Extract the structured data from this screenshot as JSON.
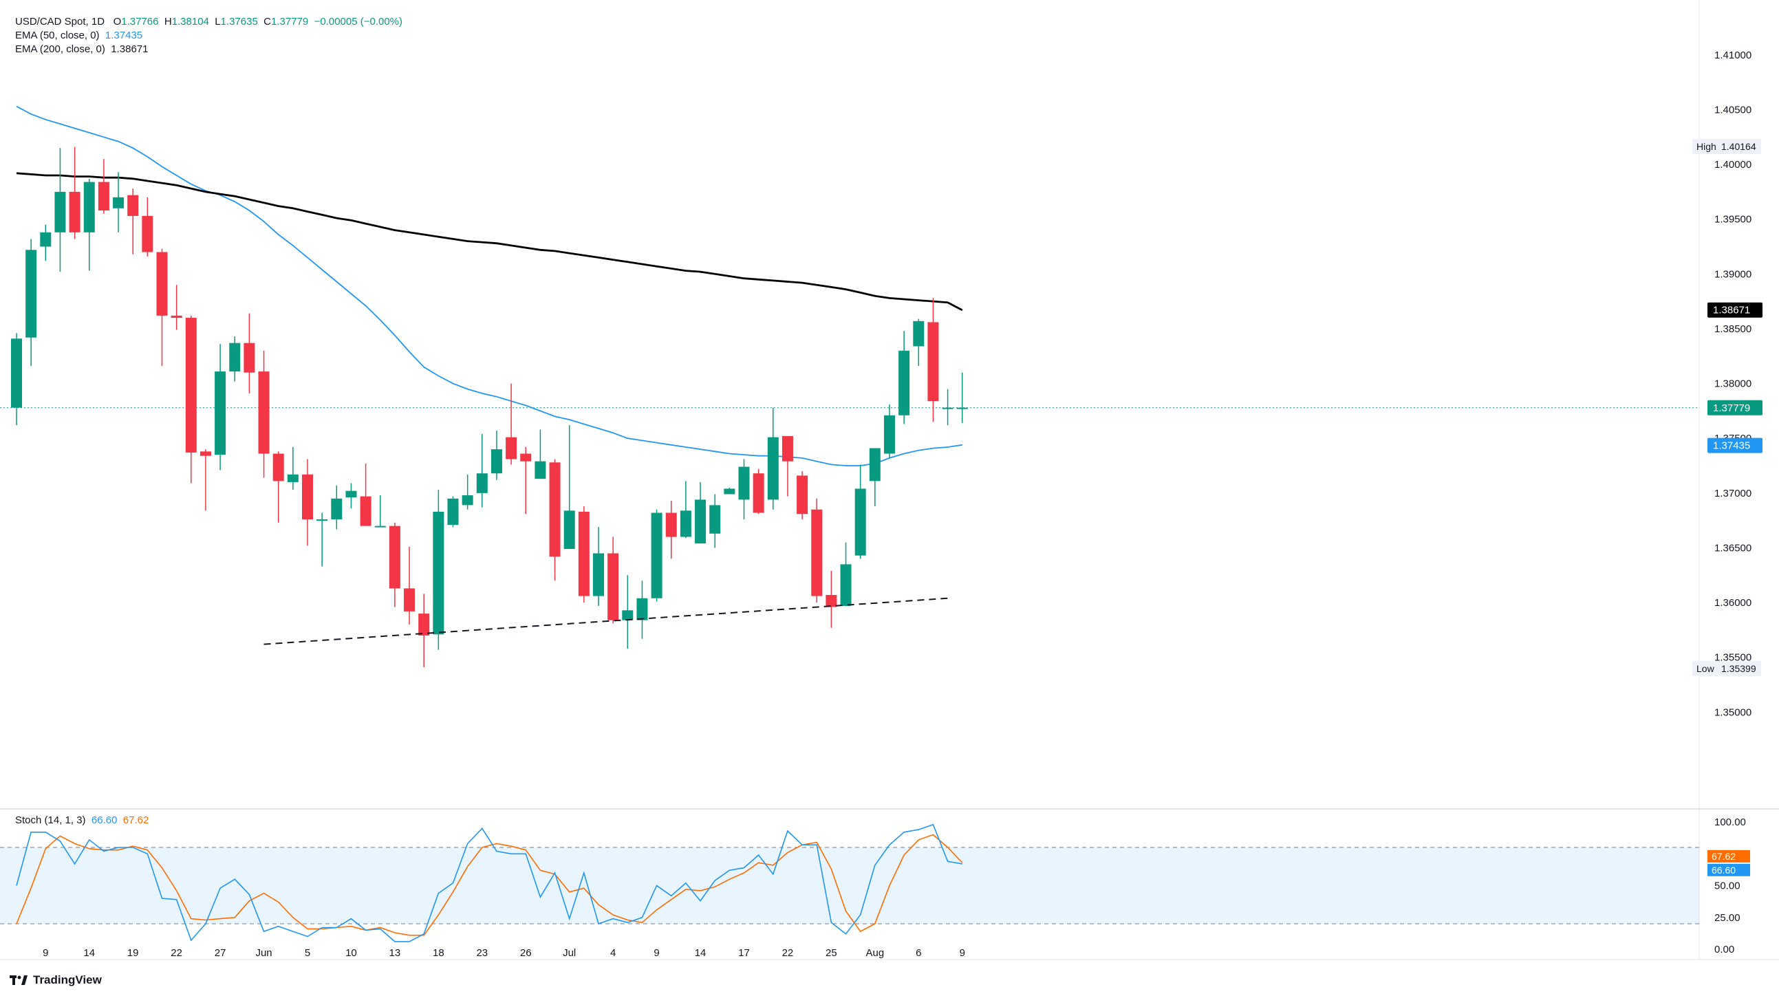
{
  "legend": {
    "symbol": "USD/CAD Spot, 1D",
    "o_label": "O",
    "open": "1.37766",
    "h_label": "H",
    "high": "1.38104",
    "l_label": "L",
    "low": "1.37635",
    "c_label": "C",
    "close": "1.37779",
    "change": "−0.00005 (−0.00%)",
    "ema50_label": "EMA (50, close, 0)",
    "ema50_value": "1.37435",
    "ema200_label": "EMA (200, close, 0)",
    "ema200_value": "1.38671"
  },
  "stoch_legend": {
    "label": "Stoch (14, 1, 3)",
    "k": "66.60",
    "d": "67.62"
  },
  "brand": "TradingView",
  "colors": {
    "up": "#089981",
    "down": "#f23645",
    "ema50": "#2196f3",
    "ema200": "#000000",
    "stoch_k": "#2196f3",
    "stoch_d": "#ff6d00"
  },
  "chart_data": [
    {
      "type": "candlestick",
      "ylim": [
        1.345,
        1.4125
      ],
      "y_ticks": [
        "1.41000",
        "1.40500",
        "1.40000",
        "1.39500",
        "1.39000",
        "1.38500",
        "1.38000",
        "1.37500",
        "1.37000",
        "1.36500",
        "1.36000",
        "1.35500",
        "1.35000"
      ],
      "x_ticks": [
        "9",
        "14",
        "19",
        "22",
        "27",
        "Jun",
        "5",
        "10",
        "13",
        "18",
        "23",
        "26",
        "Jul",
        "4",
        "9",
        "14",
        "17",
        "22",
        "25",
        "Aug",
        "6",
        "9"
      ],
      "candles": [
        {
          "o": 1.3778,
          "h": 1.3846,
          "l": 1.3762,
          "c": 1.3841
        },
        {
          "o": 1.3842,
          "h": 1.3932,
          "l": 1.3816,
          "c": 1.3922
        },
        {
          "o": 1.3925,
          "h": 1.3945,
          "l": 1.3912,
          "c": 1.3938
        },
        {
          "o": 1.3938,
          "h": 1.4015,
          "l": 1.3902,
          "c": 1.3975
        },
        {
          "o": 1.3975,
          "h": 1.4016,
          "l": 1.3932,
          "c": 1.3938
        },
        {
          "o": 1.3938,
          "h": 1.3987,
          "l": 1.3903,
          "c": 1.3984
        },
        {
          "o": 1.3984,
          "h": 1.4005,
          "l": 1.3955,
          "c": 1.3958
        },
        {
          "o": 1.396,
          "h": 1.3993,
          "l": 1.3938,
          "c": 1.397
        },
        {
          "o": 1.3972,
          "h": 1.3978,
          "l": 1.3918,
          "c": 1.3953
        },
        {
          "o": 1.3953,
          "h": 1.397,
          "l": 1.3916,
          "c": 1.392
        },
        {
          "o": 1.392,
          "h": 1.3923,
          "l": 1.3816,
          "c": 1.3862
        },
        {
          "o": 1.3862,
          "h": 1.389,
          "l": 1.3849,
          "c": 1.386
        },
        {
          "o": 1.386,
          "h": 1.3862,
          "l": 1.3709,
          "c": 1.3737
        },
        {
          "o": 1.3738,
          "h": 1.374,
          "l": 1.3684,
          "c": 1.3734
        },
        {
          "o": 1.3735,
          "h": 1.3836,
          "l": 1.3721,
          "c": 1.3811
        },
        {
          "o": 1.3811,
          "h": 1.3843,
          "l": 1.3802,
          "c": 1.3837
        },
        {
          "o": 1.3837,
          "h": 1.3864,
          "l": 1.3791,
          "c": 1.381
        },
        {
          "o": 1.3811,
          "h": 1.383,
          "l": 1.3714,
          "c": 1.3736
        },
        {
          "o": 1.3736,
          "h": 1.3738,
          "l": 1.3673,
          "c": 1.3711
        },
        {
          "o": 1.371,
          "h": 1.3742,
          "l": 1.3703,
          "c": 1.3717
        },
        {
          "o": 1.3717,
          "h": 1.3731,
          "l": 1.3652,
          "c": 1.3676
        },
        {
          "o": 1.3676,
          "h": 1.3682,
          "l": 1.3633,
          "c": 1.3676
        },
        {
          "o": 1.3676,
          "h": 1.3707,
          "l": 1.3667,
          "c": 1.3695
        },
        {
          "o": 1.3696,
          "h": 1.3709,
          "l": 1.3686,
          "c": 1.3702
        },
        {
          "o": 1.3697,
          "h": 1.3727,
          "l": 1.3672,
          "c": 1.367
        },
        {
          "o": 1.3669,
          "h": 1.3698,
          "l": 1.3669,
          "c": 1.367
        },
        {
          "o": 1.367,
          "h": 1.3673,
          "l": 1.3596,
          "c": 1.3613
        },
        {
          "o": 1.3613,
          "h": 1.3651,
          "l": 1.358,
          "c": 1.3592
        },
        {
          "o": 1.359,
          "h": 1.3608,
          "l": 1.3541,
          "c": 1.357
        },
        {
          "o": 1.3571,
          "h": 1.3703,
          "l": 1.3557,
          "c": 1.3683
        },
        {
          "o": 1.3671,
          "h": 1.3697,
          "l": 1.3669,
          "c": 1.3695
        },
        {
          "o": 1.3689,
          "h": 1.3717,
          "l": 1.3685,
          "c": 1.3698
        },
        {
          "o": 1.37,
          "h": 1.3754,
          "l": 1.3687,
          "c": 1.3718
        },
        {
          "o": 1.3718,
          "h": 1.3757,
          "l": 1.3712,
          "c": 1.374
        },
        {
          "o": 1.3751,
          "h": 1.38,
          "l": 1.3726,
          "c": 1.3731
        },
        {
          "o": 1.3736,
          "h": 1.3742,
          "l": 1.3681,
          "c": 1.3729
        },
        {
          "o": 1.3713,
          "h": 1.3758,
          "l": 1.3713,
          "c": 1.3729
        },
        {
          "o": 1.3728,
          "h": 1.3731,
          "l": 1.362,
          "c": 1.3642
        },
        {
          "o": 1.3649,
          "h": 1.3762,
          "l": 1.3649,
          "c": 1.3684
        },
        {
          "o": 1.3683,
          "h": 1.3688,
          "l": 1.36,
          "c": 1.3606
        },
        {
          "o": 1.3606,
          "h": 1.3669,
          "l": 1.3597,
          "c": 1.3645
        },
        {
          "o": 1.3645,
          "h": 1.366,
          "l": 1.3581,
          "c": 1.3584
        },
        {
          "o": 1.3584,
          "h": 1.3625,
          "l": 1.3558,
          "c": 1.3593
        },
        {
          "o": 1.3584,
          "h": 1.362,
          "l": 1.3567,
          "c": 1.3604
        },
        {
          "o": 1.3604,
          "h": 1.3685,
          "l": 1.3601,
          "c": 1.3682
        },
        {
          "o": 1.3682,
          "h": 1.3693,
          "l": 1.364,
          "c": 1.366
        },
        {
          "o": 1.366,
          "h": 1.3711,
          "l": 1.3659,
          "c": 1.3684
        },
        {
          "o": 1.3654,
          "h": 1.371,
          "l": 1.3654,
          "c": 1.3694
        },
        {
          "o": 1.3663,
          "h": 1.3699,
          "l": 1.365,
          "c": 1.3689
        },
        {
          "o": 1.3699,
          "h": 1.3705,
          "l": 1.3699,
          "c": 1.3704
        },
        {
          "o": 1.3694,
          "h": 1.3731,
          "l": 1.3676,
          "c": 1.3724
        },
        {
          "o": 1.3718,
          "h": 1.3722,
          "l": 1.3681,
          "c": 1.3682
        },
        {
          "o": 1.3694,
          "h": 1.3778,
          "l": 1.3685,
          "c": 1.3751
        },
        {
          "o": 1.3752,
          "h": 1.3752,
          "l": 1.3697,
          "c": 1.3729
        },
        {
          "o": 1.3716,
          "h": 1.372,
          "l": 1.3676,
          "c": 1.3681
        },
        {
          "o": 1.3685,
          "h": 1.3695,
          "l": 1.36,
          "c": 1.3606
        },
        {
          "o": 1.3607,
          "h": 1.3629,
          "l": 1.3577,
          "c": 1.3596
        },
        {
          "o": 1.3597,
          "h": 1.3655,
          "l": 1.3597,
          "c": 1.3635
        },
        {
          "o": 1.3643,
          "h": 1.3726,
          "l": 1.364,
          "c": 1.3704
        },
        {
          "o": 1.3711,
          "h": 1.3741,
          "l": 1.3688,
          "c": 1.3741
        },
        {
          "o": 1.3736,
          "h": 1.3781,
          "l": 1.3732,
          "c": 1.3771
        },
        {
          "o": 1.3771,
          "h": 1.3848,
          "l": 1.3763,
          "c": 1.383
        },
        {
          "o": 1.3834,
          "h": 1.3859,
          "l": 1.3816,
          "c": 1.3857
        },
        {
          "o": 1.3856,
          "h": 1.3878,
          "l": 1.3765,
          "c": 1.3784
        },
        {
          "o": 1.3778,
          "h": 1.3795,
          "l": 1.3762,
          "c": 1.3778
        },
        {
          "o": 1.3777,
          "h": 1.381,
          "l": 1.3764,
          "c": 1.3778
        }
      ],
      "ema50": [
        1.4053,
        1.4046,
        1.4041,
        1.4037,
        1.4033,
        1.4029,
        1.4025,
        1.4021,
        1.4015,
        1.4007,
        1.3998,
        1.399,
        1.3982,
        1.3976,
        1.3972,
        1.3966,
        1.3958,
        1.3948,
        1.3936,
        1.3926,
        1.3915,
        1.3904,
        1.3893,
        1.3882,
        1.3871,
        1.3858,
        1.3844,
        1.3829,
        1.3815,
        1.3807,
        1.38,
        1.3795,
        1.3791,
        1.3788,
        1.3784,
        1.378,
        1.3775,
        1.377,
        1.3767,
        1.3763,
        1.3759,
        1.3755,
        1.375,
        1.3748,
        1.3746,
        1.3744,
        1.3742,
        1.374,
        1.3738,
        1.3736,
        1.3735,
        1.3734,
        1.3734,
        1.3733,
        1.3732,
        1.3729,
        1.3726,
        1.3725,
        1.3725,
        1.3727,
        1.3732,
        1.3736,
        1.3739,
        1.3741,
        1.3742,
        1.3744
      ],
      "ema200": [
        1.3992,
        1.3991,
        1.399,
        1.399,
        1.3989,
        1.3989,
        1.3988,
        1.3988,
        1.3987,
        1.3985,
        1.3983,
        1.3981,
        1.3978,
        1.3975,
        1.3973,
        1.3971,
        1.3968,
        1.3965,
        1.3962,
        1.396,
        1.3957,
        1.3954,
        1.3951,
        1.3949,
        1.3946,
        1.3943,
        1.394,
        1.3938,
        1.3936,
        1.3934,
        1.3932,
        1.393,
        1.3929,
        1.3928,
        1.3926,
        1.3924,
        1.3922,
        1.3921,
        1.3919,
        1.3917,
        1.3915,
        1.3913,
        1.3911,
        1.3909,
        1.3907,
        1.3905,
        1.3903,
        1.3902,
        1.39,
        1.3898,
        1.3896,
        1.3895,
        1.3894,
        1.3893,
        1.3892,
        1.389,
        1.3888,
        1.3886,
        1.3883,
        1.388,
        1.3878,
        1.3877,
        1.3876,
        1.3875,
        1.3874,
        1.3867
      ],
      "support_line": [
        [
          17,
          1.3562
        ],
        [
          64,
          1.3604
        ]
      ],
      "current_price": 1.37779,
      "labels": {
        "high_tag": "High",
        "high_value": "1.40164",
        "low_tag": "Low",
        "low_value": "1.35399",
        "ema200_value": "1.38671",
        "current_value": "1.37779",
        "ema50_value": "1.37435"
      },
      "high_mark": 1.40164,
      "low_mark": 1.35399
    },
    {
      "type": "line",
      "name": "Stoch (14, 1, 3)",
      "ylim": [
        0,
        100
      ],
      "y_ticks": [
        "100.00",
        "75.00",
        "50.00",
        "25.00",
        "0.00"
      ],
      "band": [
        20,
        80
      ],
      "k": [
        50,
        92,
        92,
        85,
        67,
        86,
        77,
        80,
        80,
        75,
        40,
        39,
        7,
        20,
        48,
        55,
        43,
        14,
        18,
        14,
        10,
        17,
        17,
        24,
        15,
        16,
        6,
        6,
        12,
        44,
        52,
        83,
        95,
        77,
        75,
        75,
        41,
        60,
        24,
        60,
        20,
        24,
        21,
        25,
        50,
        42,
        52,
        38,
        54,
        62,
        64,
        74,
        59,
        93,
        82,
        82,
        21,
        12,
        27,
        66,
        82,
        92,
        94,
        98,
        69,
        67
      ],
      "d": [
        20,
        48,
        79,
        89,
        83,
        79,
        78,
        78,
        81,
        78,
        64,
        46,
        24,
        23,
        24,
        25,
        38,
        44,
        37,
        25,
        16,
        16,
        17,
        18,
        15,
        17,
        13,
        11,
        11,
        27,
        45,
        65,
        80,
        83,
        81,
        78,
        62,
        59,
        45,
        48,
        35,
        27,
        23,
        21,
        31,
        39,
        47,
        46,
        49,
        55,
        60,
        68,
        66,
        76,
        82,
        84,
        63,
        30,
        14,
        20,
        50,
        74,
        86,
        90,
        80,
        68
      ]
    }
  ]
}
